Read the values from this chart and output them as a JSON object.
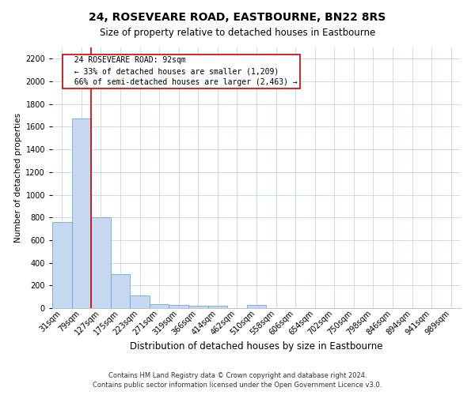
{
  "title": "24, ROSEVEARE ROAD, EASTBOURNE, BN22 8RS",
  "subtitle": "Size of property relative to detached houses in Eastbourne",
  "xlabel": "Distribution of detached houses by size in Eastbourne",
  "ylabel": "Number of detached properties",
  "footer_line1": "Contains HM Land Registry data © Crown copyright and database right 2024.",
  "footer_line2": "Contains public sector information licensed under the Open Government Licence v3.0.",
  "categories": [
    "31sqm",
    "79sqm",
    "127sqm",
    "175sqm",
    "223sqm",
    "271sqm",
    "319sqm",
    "366sqm",
    "414sqm",
    "462sqm",
    "510sqm",
    "558sqm",
    "606sqm",
    "654sqm",
    "702sqm",
    "750sqm",
    "798sqm",
    "846sqm",
    "894sqm",
    "941sqm",
    "989sqm"
  ],
  "values": [
    760,
    1670,
    800,
    300,
    110,
    38,
    25,
    18,
    18,
    0,
    25,
    0,
    0,
    0,
    0,
    0,
    0,
    0,
    0,
    0,
    0
  ],
  "bar_color": "#c5d8f0",
  "bar_edge_color": "#5b9bd5",
  "red_line_x": 1.5,
  "annotation_text": "  24 ROSEVEARE ROAD: 92sqm\n  ← 33% of detached houses are smaller (1,209)\n  66% of semi-detached houses are larger (2,463) →",
  "annotation_box_color": "#ffffff",
  "annotation_box_edge_color": "#cc0000",
  "ylim": [
    0,
    2300
  ],
  "yticks": [
    0,
    200,
    400,
    600,
    800,
    1000,
    1200,
    1400,
    1600,
    1800,
    2000,
    2200
  ],
  "background_color": "#ffffff",
  "grid_color": "#c8d4e8",
  "title_fontsize": 10,
  "subtitle_fontsize": 8.5,
  "ylabel_fontsize": 7.5,
  "xlabel_fontsize": 8.5,
  "tick_fontsize": 7,
  "annotation_fontsize": 7,
  "footer_fontsize": 6
}
